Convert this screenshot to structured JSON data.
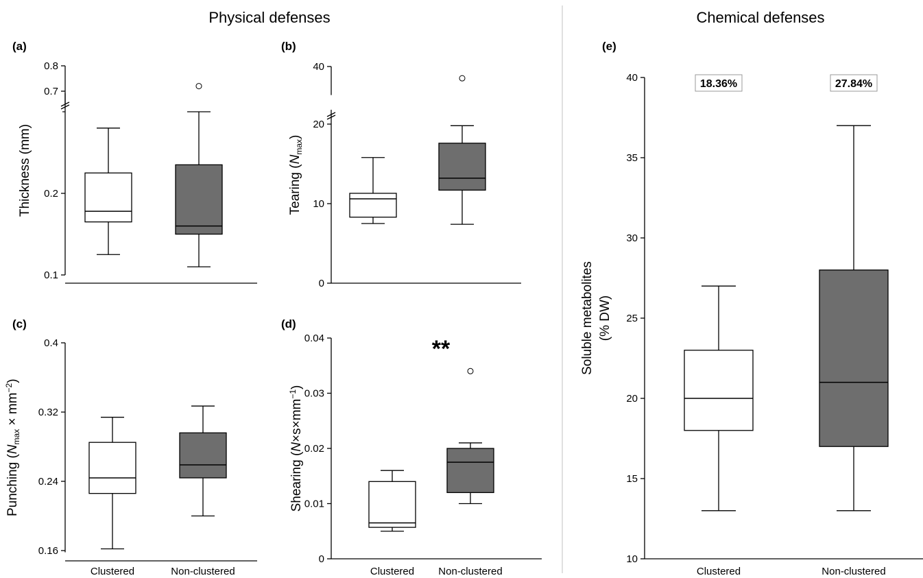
{
  "figure": {
    "section_titles": {
      "physical": "Physical defenses",
      "chemical": "Chemical defenses"
    },
    "colors": {
      "clustered_fill": "#ffffff",
      "nonclustered_fill": "#6e6e6e",
      "stroke": "#000000",
      "divider": "#cccccc"
    }
  },
  "chart_data": [
    {
      "panel": "(a)",
      "type": "box",
      "ylabel": "Thickness (mm)",
      "categories": [
        "Clustered",
        "Non-clustered"
      ],
      "category_labels_shown": false,
      "yticks": [
        0.1,
        0.2,
        0.7,
        0.8
      ],
      "ytick_labels": [
        "0.1",
        "0.2",
        "0.7",
        "0.8"
      ],
      "axis_break": true,
      "boxes": [
        {
          "name": "Clustered",
          "whisker_low": 0.125,
          "q1": 0.165,
          "median": 0.178,
          "q3": 0.225,
          "whisker_high": 0.28
        },
        {
          "name": "Non-clustered",
          "whisker_low": 0.11,
          "q1": 0.15,
          "median": 0.16,
          "q3": 0.235,
          "whisker_high": 0.3,
          "outliers": [
            0.72
          ]
        }
      ]
    },
    {
      "panel": "(b)",
      "type": "box",
      "ylabel": "Tearing (N_max)",
      "ylabel_parts": {
        "pre": "Tearing (",
        "italic": "N",
        "sub": "max",
        "post": ")"
      },
      "categories": [
        "Clustered",
        "Non-clustered"
      ],
      "category_labels_shown": false,
      "yticks": [
        0,
        10,
        20,
        40
      ],
      "ytick_labels": [
        "0",
        "10",
        "20",
        "40"
      ],
      "axis_break": true,
      "boxes": [
        {
          "name": "Clustered",
          "whisker_low": 7.5,
          "q1": 8.3,
          "median": 10.6,
          "q3": 11.3,
          "whisker_high": 15.8
        },
        {
          "name": "Non-clustered",
          "whisker_low": 7.4,
          "q1": 11.7,
          "median": 13.2,
          "q3": 17.6,
          "whisker_high": 19.8,
          "outliers": [
            36.5
          ]
        }
      ]
    },
    {
      "panel": "(c)",
      "type": "box",
      "ylabel": "Punching (N_max × mm−2)",
      "ylabel_parts": {
        "pre": "Punching (",
        "italic": "N",
        "sub": "max",
        "mid": " × mm",
        "sup": "−2",
        "post": ")"
      },
      "categories": [
        "Clustered",
        "Non-clustered"
      ],
      "category_labels_shown": true,
      "yticks": [
        0.16,
        0.24,
        0.32,
        0.4
      ],
      "ytick_labels": [
        "0.16",
        "0.24",
        "0.32",
        "0.4"
      ],
      "ylim": [
        0.16,
        0.4
      ],
      "boxes": [
        {
          "name": "Clustered",
          "whisker_low": 0.162,
          "q1": 0.226,
          "median": 0.244,
          "q3": 0.285,
          "whisker_high": 0.314
        },
        {
          "name": "Non-clustered",
          "whisker_low": 0.2,
          "q1": 0.244,
          "median": 0.259,
          "q3": 0.296,
          "whisker_high": 0.327
        }
      ]
    },
    {
      "panel": "(d)",
      "type": "box",
      "ylabel": "Shearing (N×s×mm−1)",
      "ylabel_parts": {
        "pre": "Shearing (",
        "italic": "N",
        "mid": "×s×mm",
        "sup": "−1",
        "post": ")"
      },
      "categories": [
        "Clustered",
        "Non-clustered"
      ],
      "category_labels_shown": true,
      "yticks": [
        0,
        0.01,
        0.02,
        0.03,
        0.04
      ],
      "ytick_labels": [
        "0",
        "0.01",
        "0.02",
        "0.03",
        "0.04"
      ],
      "ylim": [
        0,
        0.04
      ],
      "significance": "**",
      "boxes": [
        {
          "name": "Clustered",
          "whisker_low": 0.005,
          "q1": 0.0057,
          "median": 0.0065,
          "q3": 0.014,
          "whisker_high": 0.016
        },
        {
          "name": "Non-clustered",
          "whisker_low": 0.01,
          "q1": 0.012,
          "median": 0.0175,
          "q3": 0.02,
          "whisker_high": 0.021,
          "outliers": [
            0.034
          ]
        }
      ]
    },
    {
      "panel": "(e)",
      "type": "box",
      "ylabel": "Soluble metabolites (% DW)",
      "ylabel_lines": [
        "Soluble metabolites",
        "(% DW)"
      ],
      "categories": [
        "Clustered",
        "Non-clustered"
      ],
      "category_labels_shown": true,
      "yticks": [
        10,
        15,
        20,
        25,
        30,
        35,
        40
      ],
      "ytick_labels": [
        "10",
        "15",
        "20",
        "25",
        "30",
        "35",
        "40"
      ],
      "ylim": [
        10,
        40
      ],
      "annotations": [
        "18.36%",
        "27.84%"
      ],
      "boxes": [
        {
          "name": "Clustered",
          "whisker_low": 13,
          "q1": 18,
          "median": 20,
          "q3": 23,
          "whisker_high": 27
        },
        {
          "name": "Non-clustered",
          "whisker_low": 13,
          "q1": 17,
          "median": 21,
          "q3": 28,
          "whisker_high": 37
        }
      ]
    }
  ]
}
